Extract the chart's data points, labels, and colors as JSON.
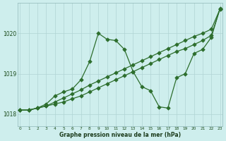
{
  "title": "Graphe pression niveau de la mer (hPa)",
  "background_color": "#ceeeed",
  "grid_color": "#b0d4d4",
  "line_color": "#2d6e2d",
  "xlim": [
    -0.3,
    23.3
  ],
  "ylim": [
    1017.7,
    1020.75
  ],
  "yticks": [
    1018,
    1019,
    1020
  ],
  "xticks": [
    0,
    1,
    2,
    3,
    4,
    5,
    6,
    7,
    8,
    9,
    10,
    11,
    12,
    13,
    14,
    15,
    16,
    17,
    18,
    19,
    20,
    21,
    22,
    23
  ],
  "line1_x": [
    0,
    1,
    2,
    3,
    4,
    5,
    6,
    7,
    8,
    9,
    10,
    11,
    12,
    13,
    14,
    15,
    16,
    17,
    18,
    19,
    20,
    21,
    22,
    23
  ],
  "line1_y": [
    1018.1,
    1018.1,
    1018.15,
    1018.2,
    1018.25,
    1018.3,
    1018.38,
    1018.45,
    1018.55,
    1018.65,
    1018.75,
    1018.85,
    1018.95,
    1019.05,
    1019.15,
    1019.25,
    1019.35,
    1019.45,
    1019.55,
    1019.62,
    1019.72,
    1019.82,
    1019.95,
    1020.6
  ],
  "line2_x": [
    0,
    1,
    2,
    3,
    4,
    5,
    6,
    7,
    8,
    9,
    10,
    11,
    12,
    13,
    14,
    15,
    16,
    17,
    18,
    19,
    20,
    21,
    22,
    23
  ],
  "line2_y": [
    1018.1,
    1018.1,
    1018.15,
    1018.2,
    1018.3,
    1018.4,
    1018.5,
    1018.6,
    1018.72,
    1018.82,
    1018.92,
    1019.02,
    1019.12,
    1019.22,
    1019.32,
    1019.42,
    1019.52,
    1019.62,
    1019.72,
    1019.82,
    1019.92,
    1020.0,
    1020.1,
    1020.6
  ],
  "line3_x": [
    0,
    1,
    2,
    3,
    4,
    5,
    6,
    7,
    8,
    9,
    10,
    11,
    12,
    13,
    14,
    15,
    16,
    17,
    18,
    19,
    20,
    21,
    22,
    23
  ],
  "line3_y": [
    1018.1,
    1018.1,
    1018.15,
    1018.25,
    1018.45,
    1018.55,
    1018.62,
    1018.85,
    1019.3,
    1020.0,
    1019.85,
    1019.82,
    1019.6,
    1019.05,
    1018.68,
    1018.58,
    1018.18,
    1018.15,
    1018.9,
    1019.0,
    1019.5,
    1019.6,
    1019.9,
    1020.62
  ]
}
